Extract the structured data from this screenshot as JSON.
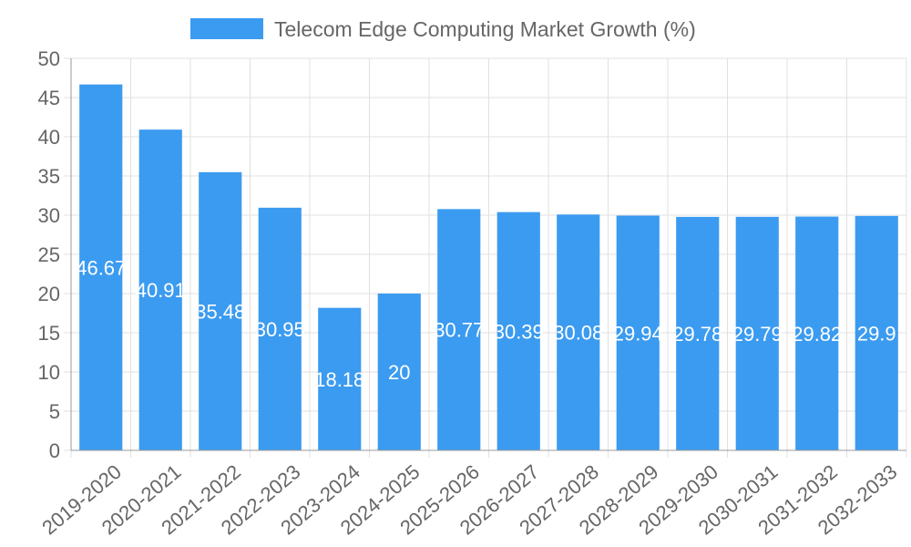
{
  "chart_data": {
    "type": "bar",
    "title": "",
    "legend": {
      "label": "Telecom Edge Computing Market Growth (%)",
      "color": "#3b9bf0",
      "position": "top-center"
    },
    "categories": [
      "2019-2020",
      "2020-2021",
      "2021-2022",
      "2022-2023",
      "2023-2024",
      "2024-2025",
      "2025-2026",
      "2026-2027",
      "2027-2028",
      "2028-2029",
      "2029-2030",
      "2030-2031",
      "2031-2032",
      "2032-2033"
    ],
    "values": [
      46.67,
      40.91,
      35.48,
      30.95,
      18.18,
      20,
      30.77,
      30.39,
      30.08,
      29.94,
      29.78,
      29.79,
      29.82,
      29.9
    ],
    "data_labels": [
      "46.67",
      "40.91",
      "35.48",
      "30.95",
      "18.18",
      "20",
      "30.77",
      "30.39",
      "30.08",
      "29.94",
      "29.78",
      "29.79",
      "29.82",
      "29.9"
    ],
    "ylim": [
      0,
      50
    ],
    "yticks": [
      0,
      5,
      10,
      15,
      20,
      25,
      30,
      35,
      40,
      45,
      50
    ],
    "xlabel": "",
    "ylabel": "",
    "grid": true,
    "colors": {
      "bar": "#3b9bf0",
      "grid": "#e0e0e0",
      "axis": "#999999",
      "label": "#ffffff"
    }
  }
}
